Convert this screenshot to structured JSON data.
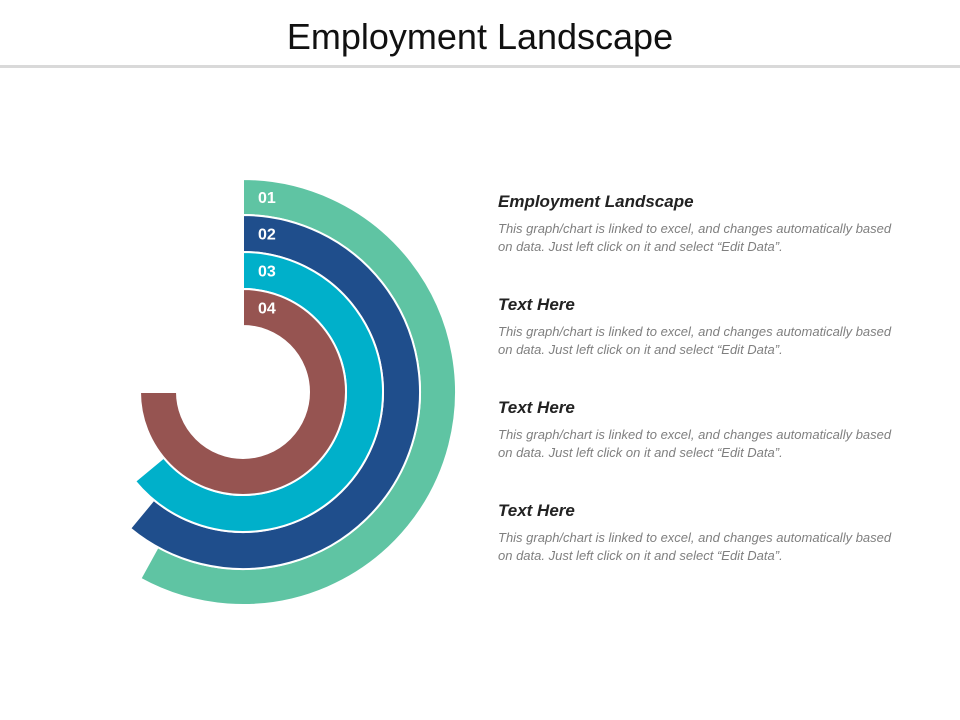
{
  "slide": {
    "title": "Employment Landscape"
  },
  "colors": {
    "ring_01": "#5fc4a3",
    "ring_02": "#1f4e8c",
    "ring_03": "#00b0ca",
    "ring_04": "#965451"
  },
  "chart_data": {
    "type": "radial-bar",
    "categories": [
      "01",
      "02",
      "03",
      "04"
    ],
    "values": [
      58,
      61,
      64,
      75
    ],
    "unit": "percent of full circle (estimated from arc sweep)"
  },
  "text_blocks": [
    {
      "heading": "Employment Landscape",
      "body": "This graph/chart is linked to excel, and changes automatically based on data. Just left click on it and select “Edit Data”."
    },
    {
      "heading": "Text Here",
      "body": "This graph/chart is linked to excel, and changes automatically based on data. Just left click on it and select “Edit Data”."
    },
    {
      "heading": "Text Here",
      "body": "This graph/chart is linked to excel, and changes automatically based on data. Just left click on it and select “Edit Data”."
    },
    {
      "heading": "Text Here",
      "body": "This graph/chart is linked to excel, and changes automatically based on data. Just left click on it and select “Edit Data”."
    }
  ]
}
